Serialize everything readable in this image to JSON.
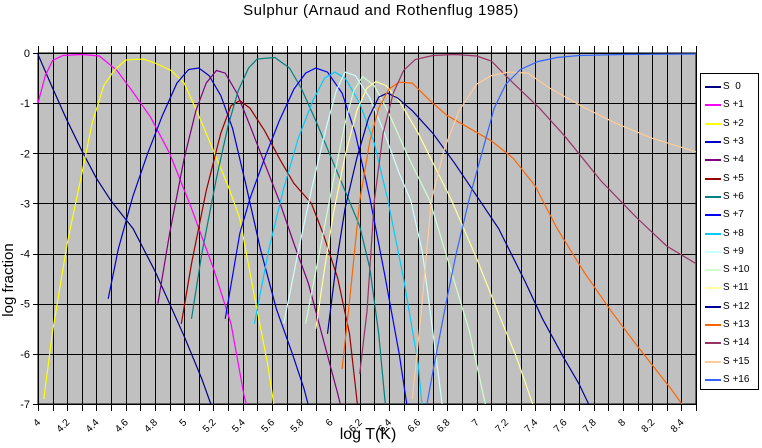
{
  "chart_data": {
    "type": "line",
    "title": "Sulphur  (Arnaud and Rothenflug 1985)",
    "xlabel": "log T(K)",
    "ylabel": "log fraction",
    "xlim": [
      4,
      8.5
    ],
    "ylim": [
      -7,
      0
    ],
    "x_ticks": [
      "4",
      "4.2",
      "4.4",
      "4.6",
      "4.8",
      "5",
      "5.2",
      "5.4",
      "5.6",
      "5.8",
      "6",
      "6.2",
      "6.4",
      "6.6",
      "6.8",
      "7",
      "7.2",
      "7.4",
      "7.6",
      "7.8",
      "8",
      "8.2",
      "8.4"
    ],
    "y_ticks": [
      "0",
      "-1",
      "-2",
      "-3",
      "-4",
      "-5",
      "-6",
      "-7"
    ],
    "grid": {
      "plot_background": "#c0c0c0",
      "gridline_color": "#000000",
      "x_minor_step": 0.1,
      "y_step": 1,
      "legend_position": "right"
    },
    "series": [
      {
        "name": "S  0",
        "color": "#000080",
        "points": [
          [
            4.0,
            -0.03
          ],
          [
            4.1,
            -0.7
          ],
          [
            4.2,
            -1.35
          ],
          [
            4.3,
            -1.95
          ],
          [
            4.4,
            -2.5
          ],
          [
            4.5,
            -2.95
          ],
          [
            4.65,
            -3.5
          ],
          [
            4.8,
            -4.35
          ],
          [
            5.0,
            -5.65
          ],
          [
            5.12,
            -6.5
          ],
          [
            5.2,
            -7.15
          ]
        ]
      },
      {
        "name": "S +1",
        "color": "#ff00ff",
        "points": [
          [
            4.0,
            -1.0
          ],
          [
            4.05,
            -0.45
          ],
          [
            4.1,
            -0.15
          ],
          [
            4.17,
            -0.05
          ],
          [
            4.3,
            -0.03
          ],
          [
            4.42,
            -0.06
          ],
          [
            4.54,
            -0.35
          ],
          [
            4.65,
            -0.78
          ],
          [
            4.77,
            -1.28
          ],
          [
            4.9,
            -2.0
          ],
          [
            5.05,
            -3.1
          ],
          [
            5.2,
            -4.3
          ],
          [
            5.32,
            -5.4
          ],
          [
            5.41,
            -6.85
          ],
          [
            5.44,
            -7.15
          ]
        ]
      },
      {
        "name": "S +2",
        "color": "#ffff00",
        "points": [
          [
            4.04,
            -6.9
          ],
          [
            4.1,
            -5.55
          ],
          [
            4.2,
            -3.8
          ],
          [
            4.3,
            -2.4
          ],
          [
            4.37,
            -1.4
          ],
          [
            4.45,
            -0.65
          ],
          [
            4.52,
            -0.35
          ],
          [
            4.6,
            -0.14
          ],
          [
            4.72,
            -0.12
          ],
          [
            4.8,
            -0.2
          ],
          [
            4.91,
            -0.35
          ],
          [
            5.0,
            -0.6
          ],
          [
            5.1,
            -1.25
          ],
          [
            5.2,
            -1.95
          ],
          [
            5.3,
            -2.65
          ],
          [
            5.38,
            -3.3
          ],
          [
            5.48,
            -4.85
          ],
          [
            5.57,
            -6.2
          ],
          [
            5.62,
            -7.15
          ]
        ]
      },
      {
        "name": "S +3",
        "color": "#0000cc",
        "points": [
          [
            4.48,
            -4.9
          ],
          [
            4.55,
            -3.9
          ],
          [
            4.65,
            -2.85
          ],
          [
            4.75,
            -2.0
          ],
          [
            4.85,
            -1.25
          ],
          [
            4.95,
            -0.6
          ],
          [
            5.03,
            -0.33
          ],
          [
            5.1,
            -0.3
          ],
          [
            5.17,
            -0.45
          ],
          [
            5.25,
            -0.85
          ],
          [
            5.33,
            -1.5
          ],
          [
            5.42,
            -2.6
          ],
          [
            5.52,
            -3.9
          ],
          [
            5.63,
            -5.1
          ],
          [
            5.74,
            -6.0
          ],
          [
            5.82,
            -6.7
          ],
          [
            5.86,
            -7.15
          ]
        ]
      },
      {
        "name": "S +4",
        "color": "#800080",
        "points": [
          [
            4.82,
            -5.0
          ],
          [
            4.9,
            -3.6
          ],
          [
            5.0,
            -2.1
          ],
          [
            5.08,
            -1.15
          ],
          [
            5.15,
            -0.6
          ],
          [
            5.22,
            -0.35
          ],
          [
            5.28,
            -0.4
          ],
          [
            5.36,
            -0.8
          ],
          [
            5.45,
            -1.45
          ],
          [
            5.55,
            -2.2
          ],
          [
            5.65,
            -2.95
          ],
          [
            5.75,
            -3.8
          ],
          [
            5.85,
            -4.6
          ],
          [
            5.95,
            -5.7
          ],
          [
            6.05,
            -6.8
          ],
          [
            6.08,
            -7.15
          ]
        ]
      },
      {
        "name": "S +5",
        "color": "#990000",
        "points": [
          [
            4.98,
            -5.4
          ],
          [
            5.05,
            -4.2
          ],
          [
            5.15,
            -2.75
          ],
          [
            5.25,
            -1.6
          ],
          [
            5.32,
            -1.05
          ],
          [
            5.38,
            -0.95
          ],
          [
            5.45,
            -1.1
          ],
          [
            5.55,
            -1.55
          ],
          [
            5.65,
            -2.1
          ],
          [
            5.75,
            -2.6
          ],
          [
            5.87,
            -3.0
          ],
          [
            5.95,
            -3.6
          ],
          [
            6.05,
            -4.5
          ],
          [
            6.13,
            -5.6
          ],
          [
            6.19,
            -7.15
          ]
        ]
      },
      {
        "name": "S +6",
        "color": "#008080",
        "points": [
          [
            5.05,
            -5.3
          ],
          [
            5.12,
            -4.0
          ],
          [
            5.22,
            -2.5
          ],
          [
            5.3,
            -1.45
          ],
          [
            5.37,
            -0.75
          ],
          [
            5.44,
            -0.3
          ],
          [
            5.5,
            -0.12
          ],
          [
            5.62,
            -0.09
          ],
          [
            5.72,
            -0.3
          ],
          [
            5.8,
            -0.7
          ],
          [
            5.9,
            -1.35
          ],
          [
            6.0,
            -2.05
          ],
          [
            6.1,
            -2.75
          ],
          [
            6.2,
            -3.45
          ],
          [
            6.27,
            -4.3
          ],
          [
            6.33,
            -5.6
          ],
          [
            6.38,
            -7.15
          ]
        ]
      },
      {
        "name": "S +7",
        "color": "#0000ff",
        "points": [
          [
            5.28,
            -5.3
          ],
          [
            5.38,
            -3.6
          ],
          [
            5.45,
            -2.9
          ],
          [
            5.55,
            -2.1
          ],
          [
            5.65,
            -1.35
          ],
          [
            5.75,
            -0.72
          ],
          [
            5.83,
            -0.4
          ],
          [
            5.9,
            -0.3
          ],
          [
            5.98,
            -0.38
          ],
          [
            6.08,
            -0.8
          ],
          [
            6.17,
            -1.6
          ],
          [
            6.27,
            -2.9
          ],
          [
            6.37,
            -4.4
          ],
          [
            6.47,
            -6.0
          ],
          [
            6.53,
            -7.15
          ]
        ]
      },
      {
        "name": "S +8",
        "color": "#00ccff",
        "points": [
          [
            5.48,
            -5.4
          ],
          [
            5.58,
            -3.9
          ],
          [
            5.68,
            -2.7
          ],
          [
            5.78,
            -1.7
          ],
          [
            5.88,
            -0.95
          ],
          [
            5.96,
            -0.5
          ],
          [
            6.03,
            -0.38
          ],
          [
            6.1,
            -0.5
          ],
          [
            6.2,
            -1.0
          ],
          [
            6.3,
            -1.8
          ],
          [
            6.39,
            -2.9
          ],
          [
            6.5,
            -4.5
          ],
          [
            6.6,
            -6.2
          ],
          [
            6.63,
            -7.15
          ]
        ]
      },
      {
        "name": "S +9",
        "color": "#ccffff",
        "points": [
          [
            5.68,
            -5.4
          ],
          [
            5.78,
            -3.95
          ],
          [
            5.88,
            -2.6
          ],
          [
            5.97,
            -1.5
          ],
          [
            6.04,
            -0.75
          ],
          [
            6.1,
            -0.38
          ],
          [
            6.17,
            -0.45
          ],
          [
            6.27,
            -0.9
          ],
          [
            6.37,
            -1.6
          ],
          [
            6.47,
            -2.4
          ],
          [
            6.55,
            -2.95
          ],
          [
            6.63,
            -4.0
          ],
          [
            6.72,
            -6.0
          ],
          [
            6.77,
            -7.15
          ]
        ]
      },
      {
        "name": "S +10",
        "color": "#ccffcc",
        "points": [
          [
            5.83,
            -5.4
          ],
          [
            5.93,
            -3.9
          ],
          [
            6.03,
            -2.4
          ],
          [
            6.1,
            -1.4
          ],
          [
            6.16,
            -0.75
          ],
          [
            6.22,
            -0.47
          ],
          [
            6.3,
            -0.65
          ],
          [
            6.4,
            -1.2
          ],
          [
            6.52,
            -2.0
          ],
          [
            6.68,
            -2.95
          ],
          [
            6.8,
            -4.1
          ],
          [
            6.95,
            -5.55
          ],
          [
            7.07,
            -7.15
          ]
        ]
      },
      {
        "name": "S +11",
        "color": "#ffff99",
        "points": [
          [
            5.9,
            -5.5
          ],
          [
            5.96,
            -4.3
          ],
          [
            6.02,
            -3.2
          ],
          [
            6.1,
            -2.05
          ],
          [
            6.18,
            -1.15
          ],
          [
            6.25,
            -0.7
          ],
          [
            6.31,
            -0.57
          ],
          [
            6.38,
            -0.65
          ],
          [
            6.48,
            -1.0
          ],
          [
            6.6,
            -1.6
          ],
          [
            6.72,
            -2.3
          ],
          [
            6.83,
            -2.95
          ],
          [
            7.0,
            -4.1
          ],
          [
            7.15,
            -5.2
          ],
          [
            7.27,
            -6.05
          ],
          [
            7.33,
            -6.55
          ],
          [
            7.4,
            -7.15
          ]
        ]
      },
      {
        "name": "S +12",
        "color": "#000099",
        "points": [
          [
            5.98,
            -5.6
          ],
          [
            6.04,
            -4.2
          ],
          [
            6.1,
            -3.1
          ],
          [
            6.18,
            -2.1
          ],
          [
            6.26,
            -1.3
          ],
          [
            6.33,
            -0.88
          ],
          [
            6.39,
            -0.8
          ],
          [
            6.46,
            -0.9
          ],
          [
            6.56,
            -1.15
          ],
          [
            6.7,
            -1.6
          ],
          [
            6.85,
            -2.2
          ],
          [
            7.0,
            -2.85
          ],
          [
            7.15,
            -3.5
          ],
          [
            7.33,
            -4.55
          ],
          [
            7.45,
            -5.3
          ],
          [
            7.6,
            -6.1
          ],
          [
            7.7,
            -6.6
          ],
          [
            7.79,
            -7.15
          ]
        ]
      },
      {
        "name": "S +13",
        "color": "#ff6600",
        "points": [
          [
            6.08,
            -6.3
          ],
          [
            6.13,
            -4.95
          ],
          [
            6.2,
            -2.95
          ],
          [
            6.27,
            -1.75
          ],
          [
            6.33,
            -1.1
          ],
          [
            6.4,
            -0.72
          ],
          [
            6.47,
            -0.58
          ],
          [
            6.56,
            -0.6
          ],
          [
            6.68,
            -0.95
          ],
          [
            6.8,
            -1.25
          ],
          [
            6.95,
            -1.5
          ],
          [
            7.1,
            -1.75
          ],
          [
            7.25,
            -2.1
          ],
          [
            7.4,
            -2.65
          ],
          [
            7.55,
            -3.5
          ],
          [
            7.73,
            -4.35
          ],
          [
            7.92,
            -5.15
          ],
          [
            8.1,
            -5.85
          ],
          [
            8.33,
            -6.7
          ],
          [
            8.44,
            -7.15
          ]
        ]
      },
      {
        "name": "S +14",
        "color": "#993366",
        "points": [
          [
            6.2,
            -6.4
          ],
          [
            6.25,
            -5.15
          ],
          [
            6.3,
            -2.95
          ],
          [
            6.36,
            -1.6
          ],
          [
            6.43,
            -0.8
          ],
          [
            6.5,
            -0.35
          ],
          [
            6.58,
            -0.13
          ],
          [
            6.7,
            -0.05
          ],
          [
            6.85,
            -0.03
          ],
          [
            7.0,
            -0.06
          ],
          [
            7.1,
            -0.16
          ],
          [
            7.25,
            -0.6
          ],
          [
            7.43,
            -1.1
          ],
          [
            7.6,
            -1.65
          ],
          [
            7.85,
            -2.55
          ],
          [
            8.1,
            -3.3
          ],
          [
            8.3,
            -3.85
          ],
          [
            8.5,
            -4.2
          ]
        ]
      },
      {
        "name": "S +15",
        "color": "#ffcc99",
        "points": [
          [
            6.56,
            -6.9
          ],
          [
            6.62,
            -5.2
          ],
          [
            6.69,
            -2.95
          ],
          [
            6.78,
            -1.9
          ],
          [
            6.88,
            -1.15
          ],
          [
            7.0,
            -0.62
          ],
          [
            7.1,
            -0.45
          ],
          [
            7.22,
            -0.38
          ],
          [
            7.35,
            -0.4
          ],
          [
            7.5,
            -0.7
          ],
          [
            7.73,
            -1.08
          ],
          [
            7.95,
            -1.4
          ],
          [
            8.2,
            -1.7
          ],
          [
            8.5,
            -1.97
          ]
        ]
      },
      {
        "name": "S +16",
        "color": "#3366ff",
        "points": [
          [
            6.66,
            -7.0
          ],
          [
            6.71,
            -6.2
          ],
          [
            6.8,
            -4.85
          ],
          [
            6.86,
            -4.0
          ],
          [
            6.95,
            -2.9
          ],
          [
            7.04,
            -1.95
          ],
          [
            7.12,
            -1.1
          ],
          [
            7.2,
            -0.62
          ],
          [
            7.3,
            -0.33
          ],
          [
            7.42,
            -0.17
          ],
          [
            7.55,
            -0.09
          ],
          [
            7.7,
            -0.05
          ],
          [
            8.0,
            -0.03
          ],
          [
            8.5,
            -0.02
          ]
        ]
      }
    ]
  }
}
